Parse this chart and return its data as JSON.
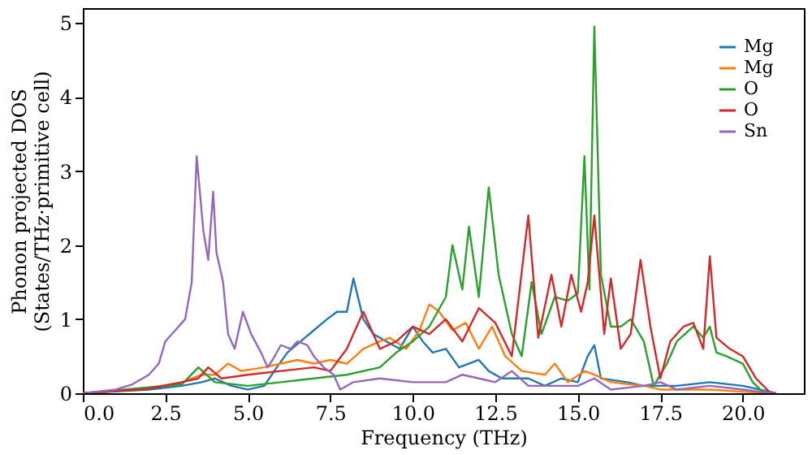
{
  "chart_data": {
    "type": "line",
    "xlabel": "Frequency (THz)",
    "ylabel": "Phonon projected DOS\n(States/THz·primitive cell)",
    "xlim": [
      0,
      21.85
    ],
    "ylim": [
      0,
      5.2
    ],
    "xticks": [
      {
        "value": 0,
        "label": "0.0"
      },
      2.5,
      {
        "value": 5,
        "label": "5.0"
      },
      7.5,
      {
        "value": 10,
        "label": "10.0"
      },
      12.5,
      {
        "value": 15,
        "label": "15.0"
      },
      17.5,
      {
        "value": 20,
        "label": "20.0"
      }
    ],
    "yticks": [
      0,
      1,
      2,
      3,
      4,
      5
    ],
    "grid": false,
    "legend": "top right",
    "marker": "none",
    "line_style": "solid",
    "series": [
      {
        "name": "Mg",
        "color": "#1f77b4",
        "x": [
          0,
          2,
          3,
          3.6,
          4,
          4.5,
          5,
          5.5,
          5.8,
          6.2,
          6.6,
          7,
          7.4,
          7.7,
          8,
          8.2,
          8.5,
          8.8,
          9.2,
          9.6,
          10,
          10.3,
          10.6,
          11,
          11.4,
          12,
          12.3,
          12.7,
          13.5,
          14,
          14.5,
          15,
          15.3,
          15.5,
          15.7,
          16.5,
          17,
          18,
          19,
          20,
          20.5,
          21
        ],
        "values": [
          0,
          0.05,
          0.1,
          0.15,
          0.2,
          0.1,
          0.05,
          0.1,
          0.3,
          0.55,
          0.7,
          0.85,
          1.0,
          1.1,
          1.1,
          1.55,
          1.0,
          0.8,
          0.7,
          0.6,
          0.9,
          0.7,
          0.55,
          0.6,
          0.35,
          0.45,
          0.3,
          0.2,
          0.2,
          0.1,
          0.2,
          0.15,
          0.5,
          0.65,
          0.2,
          0.15,
          0.1,
          0.1,
          0.15,
          0.1,
          0.05,
          0
        ]
      },
      {
        "name": "Mg",
        "color": "#ff7f0e",
        "x": [
          0,
          2,
          3,
          3.6,
          4,
          4.4,
          4.8,
          5.5,
          6,
          6.5,
          7,
          7.5,
          8,
          8.5,
          9,
          9.3,
          9.8,
          10.2,
          10.5,
          10.8,
          11.2,
          11.6,
          12,
          12.4,
          12.8,
          13.3,
          14,
          14.3,
          14.7,
          15.2,
          15.5,
          16,
          17,
          17.5,
          18,
          19,
          20,
          21
        ],
        "values": [
          0,
          0.07,
          0.15,
          0.25,
          0.25,
          0.4,
          0.3,
          0.35,
          0.4,
          0.45,
          0.4,
          0.45,
          0.4,
          0.6,
          0.7,
          0.75,
          0.6,
          0.85,
          1.2,
          1.1,
          0.85,
          0.95,
          0.6,
          0.9,
          0.5,
          0.3,
          0.25,
          0.4,
          0.15,
          0.3,
          0.25,
          0.15,
          0.1,
          0.05,
          0.05,
          0.05,
          0.02,
          0
        ]
      },
      {
        "name": "O",
        "color": "#2ca02c",
        "x": [
          0,
          2,
          3,
          3.5,
          4,
          5,
          6,
          7,
          8,
          9,
          9.5,
          10,
          10.5,
          11,
          11.2,
          11.5,
          11.7,
          12,
          12.3,
          12.6,
          13,
          13.3,
          13.6,
          13.9,
          14.3,
          14.7,
          15,
          15.2,
          15.35,
          15.5,
          15.7,
          16,
          16.3,
          16.6,
          17,
          17.3,
          17.7,
          18,
          18.5,
          18.8,
          19,
          19.2,
          19.5,
          20,
          20.3,
          20.6,
          21
        ],
        "values": [
          0,
          0.08,
          0.12,
          0.35,
          0.15,
          0.1,
          0.15,
          0.2,
          0.25,
          0.35,
          0.55,
          0.7,
          0.9,
          1.3,
          2.0,
          1.4,
          2.25,
          1.3,
          2.78,
          1.6,
          0.8,
          0.5,
          1.5,
          0.8,
          1.3,
          1.25,
          1.35,
          3.2,
          1.4,
          4.95,
          1.6,
          0.9,
          0.9,
          1.0,
          0.7,
          0.1,
          0.4,
          0.7,
          0.9,
          0.75,
          0.9,
          0.55,
          0.5,
          0.4,
          0.15,
          0.02,
          0
        ]
      },
      {
        "name": "O",
        "color": "#d62728",
        "x": [
          0,
          2,
          3,
          3.5,
          3.8,
          4.2,
          5,
          6,
          7,
          7.5,
          8,
          8.5,
          9,
          9.5,
          10,
          10.5,
          11,
          11.5,
          12,
          12.5,
          13,
          13.5,
          13.8,
          14.2,
          14.5,
          14.8,
          15.1,
          15.3,
          15.5,
          15.8,
          16,
          16.3,
          16.6,
          16.9,
          17.2,
          17.5,
          17.8,
          18.2,
          18.5,
          18.8,
          19,
          19.2,
          19.6,
          20,
          20.4,
          20.8,
          21
        ],
        "values": [
          0,
          0.06,
          0.15,
          0.2,
          0.35,
          0.2,
          0.25,
          0.3,
          0.35,
          0.3,
          0.6,
          1.1,
          0.6,
          0.7,
          0.9,
          0.8,
          1.0,
          0.7,
          1.15,
          0.95,
          0.5,
          2.4,
          0.75,
          1.6,
          0.9,
          1.6,
          1.1,
          1.5,
          2.4,
          0.8,
          1.55,
          0.6,
          0.8,
          1.8,
          0.9,
          0.2,
          0.7,
          0.9,
          0.95,
          0.6,
          1.85,
          0.75,
          0.6,
          0.5,
          0.2,
          0.02,
          0
        ]
      },
      {
        "name": "Sn",
        "color": "#9467bd",
        "x": [
          0,
          1,
          1.5,
          2,
          2.3,
          2.5,
          2.8,
          3.1,
          3.3,
          3.45,
          3.65,
          3.8,
          3.95,
          4.05,
          4.25,
          4.4,
          4.6,
          4.85,
          5.1,
          5.4,
          5.6,
          5.75,
          6,
          6.3,
          6.5,
          6.8,
          7,
          7.3,
          7.6,
          7.8,
          8.2,
          9,
          10,
          11,
          11.5,
          12,
          12.5,
          13,
          13.5,
          14,
          15,
          15.5,
          16,
          17,
          17.5,
          18,
          19,
          20,
          20.5,
          21
        ],
        "values": [
          0,
          0.05,
          0.12,
          0.25,
          0.4,
          0.7,
          0.85,
          1.0,
          1.5,
          3.2,
          2.2,
          1.8,
          2.72,
          1.9,
          1.5,
          0.8,
          0.6,
          1.1,
          0.8,
          0.55,
          0.35,
          0.45,
          0.65,
          0.6,
          0.7,
          0.65,
          0.5,
          0.35,
          0.25,
          0.05,
          0.15,
          0.2,
          0.15,
          0.15,
          0.25,
          0.2,
          0.15,
          0.3,
          0.1,
          0.1,
          0.1,
          0.2,
          0.05,
          0.1,
          0.15,
          0.05,
          0.1,
          0.05,
          0.02,
          0
        ]
      }
    ]
  }
}
